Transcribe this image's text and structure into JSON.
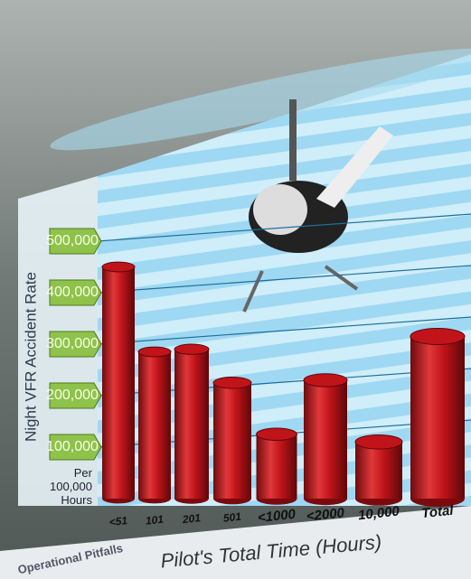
{
  "chart_data": {
    "type": "bar",
    "y_label": "Night VFR Accident Rate",
    "y_unit": "Per 100,000 Hours",
    "x_label": "Pilot's Total Time (Hours)",
    "caption": "Operational Pitfalls",
    "categories": [
      "<51",
      "101",
      "201",
      "501",
      "<1000",
      "<2000",
      "10,000",
      "Total"
    ],
    "values": [
      450000,
      285000,
      290000,
      225000,
      125000,
      230000,
      110000,
      315000
    ],
    "color": "#c0141a",
    "ylim": [
      0,
      500000
    ],
    "yticks": [
      {
        "value": 100000,
        "label": "100,000"
      },
      {
        "value": 200000,
        "label": "200,000"
      },
      {
        "value": 300000,
        "label": "300,000"
      },
      {
        "value": 400000,
        "label": "400,000"
      },
      {
        "value": 500000,
        "label": "500,000"
      }
    ],
    "grid": true
  }
}
